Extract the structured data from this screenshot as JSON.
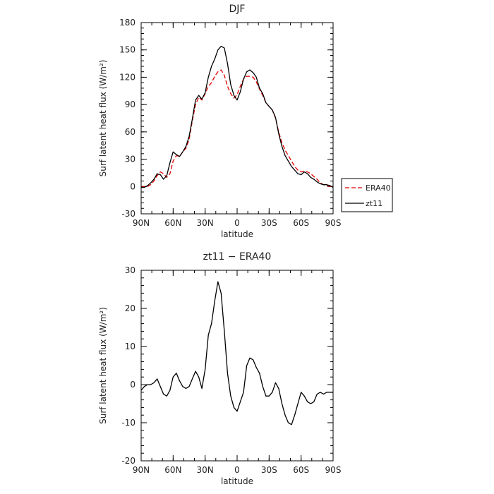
{
  "chart_data": [
    {
      "type": "line",
      "title": "DJF",
      "xlabel": "latitude",
      "ylabel": "Surf latent heat flux (W/m²)",
      "xticks": [
        {
          "v": 90,
          "label": "90N"
        },
        {
          "v": 60,
          "label": "60N"
        },
        {
          "v": 30,
          "label": "30N"
        },
        {
          "v": 0,
          "label": "0"
        },
        {
          "v": -30,
          "label": "30S"
        },
        {
          "v": -60,
          "label": "60S"
        },
        {
          "v": -90,
          "label": "90S"
        }
      ],
      "xlim": [
        90,
        -90
      ],
      "ylim": [
        -30,
        180
      ],
      "yticks": [
        -30,
        0,
        30,
        60,
        90,
        120,
        150,
        180
      ],
      "legend_position": "outside-right",
      "series": [
        {
          "name": "ERA40",
          "color": "#e00000",
          "dash": true,
          "x": [
            90,
            87,
            84,
            81,
            78,
            75,
            72,
            69,
            66,
            63,
            60,
            57,
            54,
            51,
            48,
            45,
            42,
            39,
            36,
            33,
            30,
            27,
            24,
            21,
            18,
            15,
            12,
            9,
            6,
            3,
            0,
            -3,
            -6,
            -9,
            -12,
            -15,
            -18,
            -21,
            -24,
            -27,
            -30,
            -33,
            -36,
            -39,
            -42,
            -45,
            -48,
            -51,
            -54,
            -57,
            -60,
            -63,
            -66,
            -69,
            -72,
            -75,
            -78,
            -81,
            -84,
            -87,
            -90
          ],
          "y": [
            -1,
            0,
            0,
            2,
            6,
            12,
            16,
            14,
            10,
            14,
            28,
            34,
            33,
            38,
            42,
            52,
            72,
            90,
            98,
            95,
            102,
            110,
            114,
            121,
            126,
            128,
            122,
            110,
            102,
            97,
            101,
            110,
            118,
            121,
            121,
            120,
            115,
            107,
            100,
            92,
            88,
            84,
            75,
            60,
            48,
            40,
            34,
            28,
            22,
            18,
            16,
            17,
            16,
            14,
            11,
            8,
            4,
            2,
            1,
            0,
            0
          ]
        },
        {
          "name": "zt11",
          "color": "#000000",
          "dash": false,
          "x": [
            90,
            87,
            84,
            81,
            78,
            75,
            72,
            69,
            66,
            63,
            60,
            57,
            54,
            51,
            48,
            45,
            42,
            39,
            36,
            33,
            30,
            27,
            24,
            21,
            18,
            15,
            12,
            9,
            6,
            3,
            0,
            -3,
            -6,
            -9,
            -12,
            -15,
            -18,
            -21,
            -24,
            -27,
            -30,
            -33,
            -36,
            -39,
            -42,
            -45,
            -48,
            -51,
            -54,
            -57,
            -60,
            -63,
            -66,
            -69,
            -72,
            -75,
            -78,
            -81,
            -84,
            -87,
            -90
          ],
          "y": [
            -1,
            -1,
            1,
            4,
            8,
            14,
            13,
            8,
            12,
            26,
            38,
            35,
            33,
            38,
            44,
            55,
            74,
            95,
            100,
            96,
            103,
            120,
            132,
            140,
            150,
            154,
            152,
            135,
            112,
            100,
            95,
            104,
            118,
            126,
            128,
            125,
            120,
            108,
            102,
            92,
            88,
            84,
            76,
            58,
            44,
            34,
            28,
            22,
            18,
            14,
            13,
            16,
            14,
            10,
            8,
            5,
            3,
            2,
            2,
            1,
            -1
          ]
        }
      ]
    },
    {
      "type": "line",
      "title": "zt11 − ERA40",
      "xlabel": "latitude",
      "ylabel": "Surf latent heat flux (W/m²)",
      "xticks": [
        {
          "v": 90,
          "label": "90N"
        },
        {
          "v": 60,
          "label": "60N"
        },
        {
          "v": 30,
          "label": "30N"
        },
        {
          "v": 0,
          "label": "0"
        },
        {
          "v": -30,
          "label": "30S"
        },
        {
          "v": -60,
          "label": "60S"
        },
        {
          "v": -90,
          "label": "90S"
        }
      ],
      "xlim": [
        90,
        -90
      ],
      "ylim": [
        -20,
        30
      ],
      "yticks": [
        -20,
        -10,
        0,
        10,
        20,
        30
      ],
      "series": [
        {
          "color": "#000000",
          "dash": false,
          "x": [
            90,
            87,
            84,
            81,
            78,
            75,
            72,
            69,
            66,
            63,
            60,
            57,
            54,
            51,
            48,
            45,
            42,
            39,
            36,
            33,
            30,
            27,
            24,
            21,
            18,
            15,
            12,
            9,
            6,
            3,
            0,
            -3,
            -6,
            -9,
            -12,
            -15,
            -18,
            -21,
            -24,
            -27,
            -30,
            -33,
            -36,
            -39,
            -42,
            -45,
            -48,
            -51,
            -54,
            -57,
            -60,
            -63,
            -66,
            -69,
            -72,
            -75,
            -78,
            -81,
            -84,
            -87,
            -90
          ],
          "y": [
            -1.5,
            -0.5,
            0,
            0,
            0.5,
            1.5,
            -0.5,
            -2.5,
            -3,
            -1.5,
            2,
            3,
            1,
            -0.5,
            -1,
            -0.5,
            1.5,
            3.5,
            2,
            -1,
            4,
            13,
            16,
            22,
            27,
            24,
            14,
            3,
            -3,
            -6,
            -7,
            -4.5,
            -2,
            5,
            7,
            6.5,
            4.5,
            3,
            -0.5,
            -3,
            -3,
            -2,
            0.5,
            -1,
            -5,
            -8,
            -10,
            -10.5,
            -8,
            -5,
            -2,
            -3,
            -4.5,
            -5,
            -4.5,
            -2.5,
            -2,
            -2.5,
            -2,
            -2,
            -2
          ]
        }
      ]
    }
  ]
}
